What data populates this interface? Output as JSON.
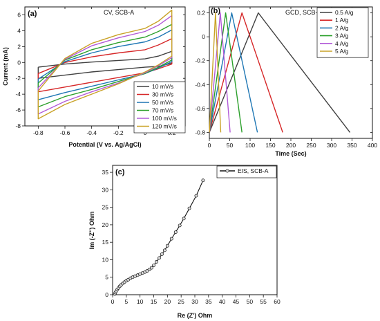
{
  "chart_data": [
    {
      "type": "line",
      "panel_label": "(a)",
      "title": "CV, SCB-A",
      "xlabel": "Potential (V vs. Ag/AgCl)",
      "ylabel": "Current (mA)",
      "xlim": [
        -0.9,
        0.3
      ],
      "ylim": [
        -8,
        7
      ],
      "x_ticks": [
        -0.8,
        -0.6,
        -0.4,
        -0.2,
        0.0,
        0.2
      ],
      "y_ticks": [
        -8,
        -6,
        -4,
        -2,
        0,
        2,
        4,
        6
      ],
      "legend_position": "bottom-right",
      "series": [
        {
          "name": "10 mV/s",
          "color": "#404040",
          "x": [
            -0.8,
            -0.6,
            -0.4,
            -0.2,
            0.0,
            0.1,
            0.2,
            0.2,
            0.1,
            0.0,
            -0.2,
            -0.4,
            -0.6,
            -0.8,
            -0.8
          ],
          "y": [
            -0.6,
            -0.2,
            0.05,
            0.25,
            0.45,
            0.8,
            1.4,
            -0.1,
            -0.5,
            -0.6,
            -0.9,
            -1.2,
            -1.6,
            -2.0,
            -0.6
          ]
        },
        {
          "name": "30 mV/s",
          "color": "#d62728",
          "x": [
            -0.8,
            -0.6,
            -0.4,
            -0.2,
            0.0,
            0.1,
            0.2,
            0.2,
            0.1,
            0.0,
            -0.2,
            -0.4,
            -0.6,
            -0.8,
            -0.8
          ],
          "y": [
            -1.4,
            0.0,
            0.7,
            1.2,
            1.6,
            2.2,
            3.0,
            -0.2,
            -0.8,
            -1.3,
            -1.9,
            -2.5,
            -3.1,
            -3.7,
            -1.4
          ]
        },
        {
          "name": "50 mV/s",
          "color": "#1f77b4",
          "x": [
            -0.8,
            -0.6,
            -0.4,
            -0.2,
            0.0,
            0.1,
            0.2,
            0.2,
            0.1,
            0.0,
            -0.2,
            -0.4,
            -0.6,
            -0.8,
            -0.8
          ],
          "y": [
            -2.1,
            0.1,
            1.2,
            2.0,
            2.6,
            3.2,
            4.1,
            0.1,
            -0.7,
            -1.4,
            -2.2,
            -3.0,
            -3.8,
            -4.7,
            -2.1
          ]
        },
        {
          "name": "70 mV/s",
          "color": "#2ca02c",
          "x": [
            -0.8,
            -0.6,
            -0.4,
            -0.2,
            0.0,
            0.1,
            0.2,
            0.2,
            0.1,
            0.0,
            -0.2,
            -0.4,
            -0.6,
            -0.8,
            -0.8
          ],
          "y": [
            -2.6,
            0.3,
            1.6,
            2.5,
            3.2,
            3.9,
            4.8,
            0.3,
            -0.6,
            -1.4,
            -2.4,
            -3.4,
            -4.3,
            -5.6,
            -2.6
          ]
        },
        {
          "name": "100 mV/s",
          "color": "#b25ad8",
          "x": [
            -0.8,
            -0.6,
            -0.4,
            -0.2,
            0.0,
            0.1,
            0.2,
            0.2,
            0.1,
            0.0,
            -0.2,
            -0.4,
            -0.6,
            -0.8,
            -0.8
          ],
          "y": [
            -3.2,
            0.4,
            2.1,
            3.1,
            3.9,
            4.7,
            5.9,
            0.6,
            -0.4,
            -1.3,
            -2.6,
            -3.7,
            -4.9,
            -6.5,
            -3.2
          ]
        },
        {
          "name": "120 mV/s",
          "color": "#c9a227",
          "x": [
            -0.8,
            -0.6,
            -0.4,
            -0.2,
            0.0,
            0.1,
            0.2,
            0.2,
            0.1,
            0.0,
            -0.2,
            -0.4,
            -0.6,
            -0.8,
            -0.8
          ],
          "y": [
            -3.6,
            0.5,
            2.4,
            3.5,
            4.3,
            5.2,
            6.6,
            0.8,
            -0.3,
            -1.2,
            -2.7,
            -4.0,
            -5.3,
            -7.1,
            -3.6
          ]
        }
      ]
    },
    {
      "type": "line",
      "panel_label": "(b)",
      "title": "GCD, SCB-A",
      "xlabel": "Time (Sec)",
      "ylabel": "",
      "xlim": [
        0,
        400
      ],
      "ylim": [
        -0.85,
        0.25
      ],
      "x_ticks": [
        0,
        50,
        100,
        150,
        200,
        250,
        300,
        350,
        400
      ],
      "y_ticks": [
        -0.8,
        -0.6,
        -0.4,
        -0.2,
        0.0,
        0.2
      ],
      "legend_position": "top-right",
      "series": [
        {
          "name": "0.5 A/g",
          "color": "#404040",
          "x": [
            0,
            120,
            345
          ],
          "y": [
            -0.8,
            0.2,
            -0.8
          ]
        },
        {
          "name": "1 A/g",
          "color": "#d62728",
          "x": [
            0,
            80,
            180
          ],
          "y": [
            -0.8,
            0.2,
            -0.8
          ]
        },
        {
          "name": "2 A/g",
          "color": "#1f77b4",
          "x": [
            0,
            55,
            118
          ],
          "y": [
            -0.8,
            0.2,
            -0.8
          ]
        },
        {
          "name": "3 A/g",
          "color": "#2ca02c",
          "x": [
            0,
            40,
            80
          ],
          "y": [
            -0.8,
            0.2,
            -0.8
          ]
        },
        {
          "name": "4 A/g",
          "color": "#b25ad8",
          "x": [
            0,
            27,
            51
          ],
          "y": [
            -0.8,
            0.2,
            -0.8
          ]
        },
        {
          "name": "5 A/g",
          "color": "#c9a227",
          "x": [
            0,
            15,
            28
          ],
          "y": [
            -0.8,
            0.2,
            -0.8
          ]
        }
      ]
    },
    {
      "type": "scatter",
      "panel_label": "(c)",
      "title": "",
      "xlabel": "Re (Z') Ohm",
      "ylabel": "Im (-Z'') Ohm",
      "xlim": [
        0,
        60
      ],
      "ylim": [
        0,
        37
      ],
      "x_ticks": [
        0,
        5,
        10,
        15,
        20,
        25,
        30,
        35,
        40,
        45,
        50,
        55,
        60
      ],
      "y_ticks": [
        0,
        5,
        10,
        15,
        20,
        25,
        30,
        35
      ],
      "legend_position": "top-right",
      "series": [
        {
          "name": "EIS, SCB-A",
          "color": "#111111",
          "x": [
            0.8,
            1.0,
            1.3,
            1.7,
            2.1,
            2.6,
            3.1,
            3.7,
            4.3,
            5.0,
            5.7,
            6.5,
            7.3,
            8.2,
            9.1,
            10.0,
            10.9,
            11.8,
            12.6,
            13.4,
            14.2,
            15.0,
            16.0,
            17.0,
            18.0,
            19.0,
            20.0,
            21.5,
            23.0,
            24.5,
            26.0,
            28.0,
            30.5,
            33.0
          ],
          "y": [
            0.2,
            0.6,
            1.0,
            1.5,
            1.9,
            2.4,
            2.8,
            3.2,
            3.6,
            4.0,
            4.3,
            4.7,
            5.0,
            5.3,
            5.6,
            5.9,
            6.2,
            6.5,
            6.8,
            7.2,
            7.7,
            8.4,
            9.4,
            10.5,
            11.6,
            12.7,
            14.0,
            16.0,
            17.9,
            19.8,
            21.8,
            24.7,
            28.3,
            32.7
          ]
        }
      ]
    }
  ]
}
